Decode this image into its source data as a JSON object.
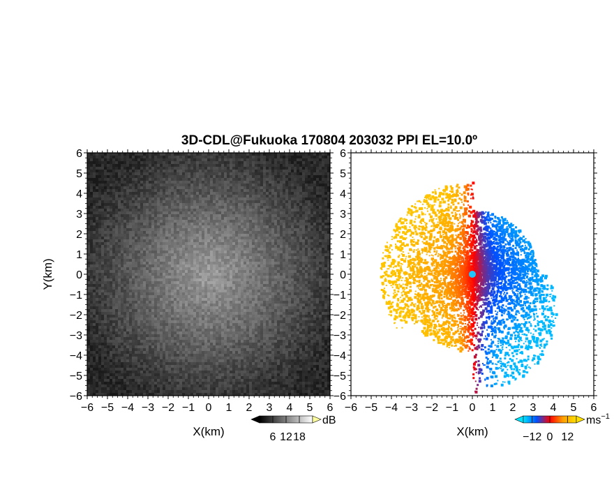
{
  "chart_data": [
    {
      "type": "heatmap",
      "title": "3D-CDL@Fukuoka 170804 203032 PPI EL=10.0º",
      "panel": "left",
      "variable": "reflectivity",
      "xlabel": "X(km)",
      "ylabel": "Y(km)",
      "xlim": [
        -6,
        6
      ],
      "ylim": [
        -6,
        6
      ],
      "xticks": [
        "−6",
        "−5",
        "−4",
        "−3",
        "−2",
        "−1",
        "0",
        "1",
        "2",
        "3",
        "4",
        "5",
        "6"
      ],
      "yticks": [
        "−6",
        "−5",
        "−4",
        "−3",
        "−2",
        "−1",
        "0",
        "1",
        "2",
        "3",
        "4",
        "5",
        "6"
      ],
      "colorbar": {
        "unit": "dB",
        "ticks": [
          "6",
          "12",
          "18"
        ],
        "range": [
          0,
          24
        ],
        "colors": [
          "#000000",
          "#ffffff"
        ]
      },
      "background_color": "#3a3a3a"
    },
    {
      "type": "scatter",
      "panel": "right",
      "variable": "doppler velocity",
      "xlabel": "X(km)",
      "xlim": [
        -6,
        6
      ],
      "ylim": [
        -6,
        6
      ],
      "xticks": [
        "−6",
        "−5",
        "−4",
        "−3",
        "−2",
        "−1",
        "0",
        "1",
        "2",
        "3",
        "4",
        "5",
        "6"
      ],
      "yticks": [
        "−6",
        "−5",
        "−4",
        "−3",
        "−2",
        "−1",
        "0",
        "1",
        "2",
        "3",
        "4",
        "5",
        "6"
      ],
      "colorbar": {
        "unit": "ms",
        "unit_exp": "−1",
        "ticks": [
          "−12",
          "0",
          "12"
        ],
        "range": [
          -18,
          18
        ],
        "colors": [
          "#00e5ff",
          "#0050ff",
          "#ff0000",
          "#ffa000",
          "#ffe000"
        ]
      },
      "approach_color": "#0a6cff",
      "recede_color": "#ff8a00"
    }
  ]
}
